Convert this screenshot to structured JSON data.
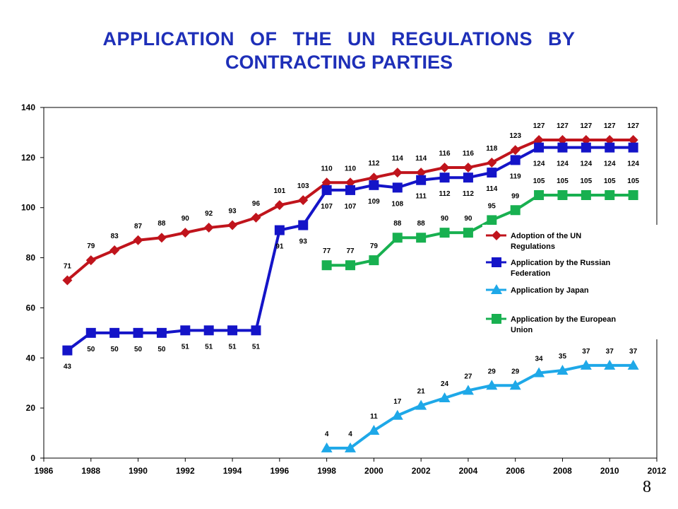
{
  "title": {
    "line1": "APPLICATION OF THE UN REGULATIONS BY",
    "line2": "CONTRACTING PARTIES"
  },
  "page_number": "8",
  "chart_data": {
    "type": "line",
    "title": "APPLICATION OF THE UN REGULATIONS BY CONTRACTING PARTIES",
    "xlim": [
      1986,
      2012
    ],
    "ylim": [
      0,
      140
    ],
    "x_ticks": [
      1986,
      1988,
      1990,
      1992,
      1994,
      1996,
      1998,
      2000,
      2002,
      2004,
      2006,
      2008,
      2010,
      2012
    ],
    "y_ticks": [
      0,
      20,
      40,
      60,
      80,
      100,
      120,
      140
    ],
    "grid": false,
    "legend_position": "right",
    "series": [
      {
        "name": "Adoption of the UN Regulations",
        "color": "#c0141c",
        "marker": "diamond",
        "x": [
          1987,
          1988,
          1989,
          1990,
          1991,
          1992,
          1993,
          1994,
          1995,
          1996,
          1997,
          1998,
          1999,
          2000,
          2001,
          2002,
          2003,
          2004,
          2005,
          2006,
          2007,
          2008,
          2009,
          2010,
          2011
        ],
        "values": [
          71,
          79,
          83,
          87,
          88,
          90,
          92,
          93,
          96,
          101,
          103,
          110,
          110,
          112,
          114,
          114,
          116,
          116,
          118,
          123,
          127,
          127,
          127,
          127,
          127
        ],
        "label_pos": "above"
      },
      {
        "name": "Application by the Russian Federation",
        "color": "#1414c8",
        "marker": "square",
        "x": [
          1987,
          1988,
          1989,
          1990,
          1991,
          1992,
          1993,
          1994,
          1995,
          1996,
          1997,
          1998,
          1999,
          2000,
          2001,
          2002,
          2003,
          2004,
          2005,
          2006,
          2007,
          2008,
          2009,
          2010,
          2011
        ],
        "values": [
          43,
          50,
          50,
          50,
          50,
          51,
          51,
          51,
          51,
          91,
          93,
          107,
          107,
          109,
          108,
          111,
          112,
          112,
          114,
          119,
          124,
          124,
          124,
          124,
          124
        ],
        "label_pos": "below"
      },
      {
        "name": "Application by Japan",
        "color": "#1ea8e8",
        "marker": "triangle",
        "x": [
          1998,
          1999,
          2000,
          2001,
          2002,
          2003,
          2004,
          2005,
          2006,
          2007,
          2008,
          2009,
          2010,
          2011
        ],
        "values": [
          4,
          4,
          11,
          17,
          21,
          24,
          27,
          29,
          29,
          34,
          35,
          37,
          37,
          37
        ],
        "label_pos": "above"
      },
      {
        "name": "Application by the European Union",
        "color": "#18b050",
        "marker": "square",
        "x": [
          1998,
          1999,
          2000,
          2001,
          2002,
          2003,
          2004,
          2005,
          2006,
          2007,
          2008,
          2009,
          2010,
          2011
        ],
        "values": [
          77,
          77,
          79,
          88,
          88,
          90,
          90,
          95,
          99,
          105,
          105,
          105,
          105,
          105
        ],
        "label_pos": "above"
      }
    ],
    "legend": [
      "Adoption of the UN Regulations",
      "Application by the Russian Federation",
      "Application by Japan",
      "Application by the European Union"
    ]
  }
}
